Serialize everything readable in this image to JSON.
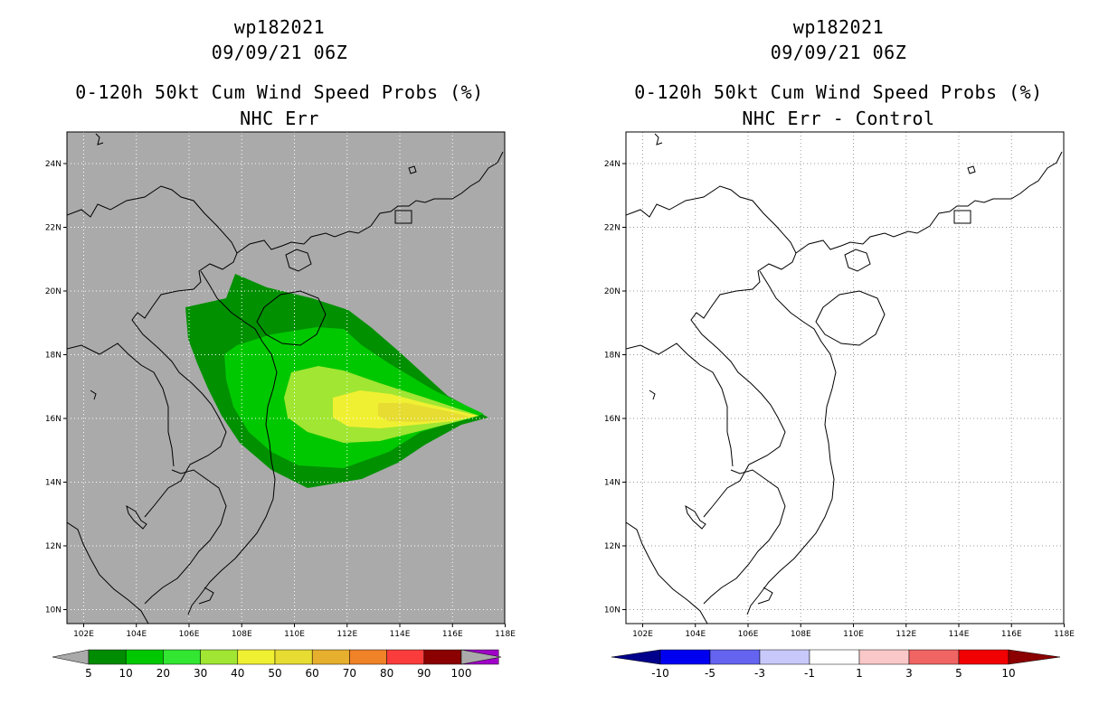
{
  "left": {
    "title_storm": "wp182021",
    "title_date": "09/09/21 06Z",
    "title_product": "0-120h 50kt Cum Wind Speed Probs (%)",
    "title_variant": "NHC Err",
    "map_background": "#aaaaaa",
    "colorbar": {
      "labels": [
        "5",
        "10",
        "20",
        "30",
        "40",
        "50",
        "60",
        "70",
        "80",
        "90",
        "100"
      ],
      "colors": [
        "#008c00",
        "#00c800",
        "#32e632",
        "#a0e632",
        "#f0f032",
        "#e6dc32",
        "#e6af2d",
        "#f08228",
        "#fa3c3c",
        "#8b0000",
        "#a000c8"
      ]
    }
  },
  "right": {
    "title_storm": "wp182021",
    "title_date": "09/09/21 06Z",
    "title_product": "0-120h 50kt Cum Wind Speed Probs (%)",
    "title_variant": "NHC Err - Control",
    "map_background": "#ffffff",
    "colorbar": {
      "labels": [
        "-10",
        "-5",
        "-3",
        "-1",
        "1",
        "3",
        "5",
        "10"
      ],
      "colors": [
        "#00008c",
        "#0000f0",
        "#6464f0",
        "#c8c8fa",
        "#ffffff",
        "#fac8c8",
        "#f06464",
        "#f00000",
        "#8b0000"
      ]
    }
  },
  "map": {
    "lon_labels": [
      "102E",
      "104E",
      "106E",
      "108E",
      "110E",
      "112E",
      "114E",
      "116E",
      "118E"
    ],
    "lat_labels": [
      "24N",
      "22N",
      "20N",
      "18N",
      "16N",
      "14N",
      "12N",
      "10N"
    ]
  }
}
